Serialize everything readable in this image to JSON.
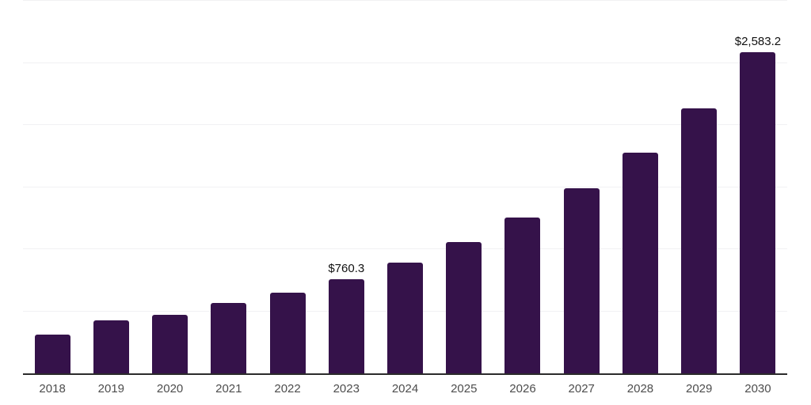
{
  "chart_data": {
    "type": "bar",
    "title": "",
    "categories": [
      "2018",
      "2019",
      "2020",
      "2021",
      "2022",
      "2023",
      "2024",
      "2025",
      "2026",
      "2027",
      "2028",
      "2029",
      "2030"
    ],
    "values": [
      310,
      425,
      470,
      565,
      650,
      760.3,
      895,
      1060,
      1255,
      1490,
      1780,
      2135,
      2583.2
    ],
    "data_labels": [
      "",
      "",
      "",
      "",
      "",
      "$760.3",
      "",
      "",
      "",
      "",
      "",
      "",
      "$2,583.2"
    ],
    "xlabel": "",
    "ylabel": "",
    "ylim": [
      0,
      3000
    ],
    "gridline_step": 500,
    "grid": "horizontal",
    "legend_position": "none",
    "colors": {
      "bar": "#35124a",
      "axis_line": "#2b2b2b",
      "gridline": "#f1f1f3",
      "tick_label": "#4d4d4d",
      "data_label": "#111111",
      "background": "#ffffff"
    }
  }
}
